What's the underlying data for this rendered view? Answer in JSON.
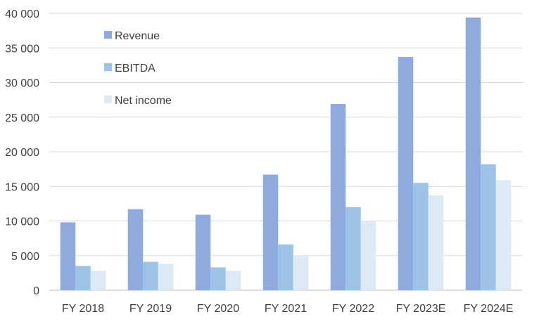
{
  "chart_data": {
    "type": "bar",
    "categories": [
      "FY 2018",
      "FY 2019",
      "FY 2020",
      "FY 2021",
      "FY 2022",
      "FY 2023E",
      "FY 2024E"
    ],
    "series": [
      {
        "name": "Revenue",
        "color": "#8faadc",
        "values": [
          9800,
          11700,
          10900,
          16700,
          26900,
          33700,
          39400
        ]
      },
      {
        "name": "EBITDA",
        "color": "#9dc3e6",
        "values": [
          3500,
          4100,
          3300,
          6600,
          12000,
          15500,
          18200
        ]
      },
      {
        "name": "Net income",
        "color": "#deebf7",
        "values": [
          2800,
          3800,
          2800,
          5000,
          10000,
          13700,
          15900
        ]
      }
    ],
    "title": "",
    "xlabel": "",
    "ylabel": "",
    "ylim": [
      0,
      40000
    ],
    "yticks": [
      0,
      5000,
      10000,
      15000,
      20000,
      25000,
      30000,
      35000,
      40000
    ],
    "ytick_labels": [
      "0",
      "5 000",
      "10 000",
      "15 000",
      "20 000",
      "25 000",
      "30 000",
      "35 000",
      "40 000"
    ],
    "grid": true,
    "legend_position": "top-left"
  }
}
